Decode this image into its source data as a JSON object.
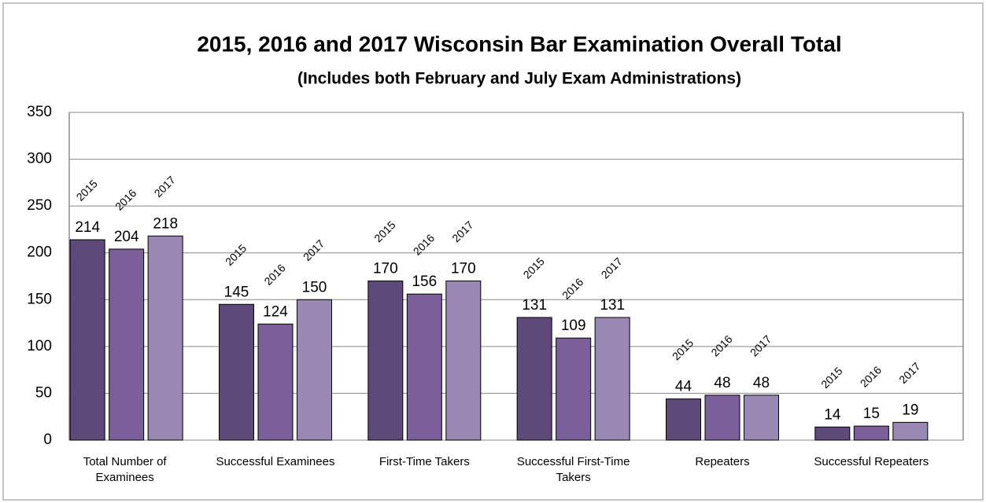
{
  "chart_data": {
    "type": "bar",
    "title": "2015, 2016 and 2017 Wisconsin Bar Examination Overall Total",
    "subtitle": "(Includes  both February and July Exam Administrations)",
    "categories": [
      "Total Number of Examinees",
      "Successful Examinees",
      "First-Time Takers",
      "Successful  First-Time Takers",
      "Repeaters",
      "Successful Repeaters"
    ],
    "series": [
      {
        "name": "2015",
        "color": "#5e4a7a",
        "values": [
          214,
          145,
          170,
          131,
          44,
          14
        ]
      },
      {
        "name": "2016",
        "color": "#7a5f9a",
        "values": [
          204,
          124,
          156,
          109,
          48,
          15
        ]
      },
      {
        "name": "2017",
        "color": "#9a88b4",
        "values": [
          218,
          150,
          170,
          131,
          48,
          19
        ]
      }
    ],
    "ylim": [
      0,
      350
    ],
    "yticks": [
      0,
      50,
      100,
      150,
      200,
      250,
      300,
      350
    ],
    "grid": true
  }
}
